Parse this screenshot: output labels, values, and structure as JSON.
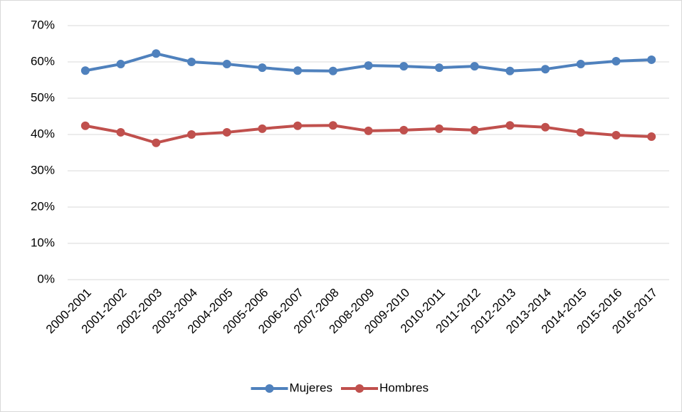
{
  "chart_data": {
    "type": "line",
    "categories": [
      "2000-2001",
      "2001-2002",
      "2002-2003",
      "2003-2004",
      "2004-2005",
      "2005-2006",
      "2006-2007",
      "2007-2008",
      "2008-2009",
      "2009-2010",
      "2010-2011",
      "2011-2012",
      "2012-2013",
      "2013-2014",
      "2014-2015",
      "2015-2016",
      "2016-2017"
    ],
    "series": [
      {
        "name": "Mujeres",
        "color": "#4f81bd",
        "values": [
          57.6,
          59.4,
          62.3,
          60.0,
          59.4,
          58.4,
          57.6,
          57.5,
          59.0,
          58.8,
          58.4,
          58.8,
          57.5,
          58.0,
          59.4,
          60.2,
          60.6
        ]
      },
      {
        "name": "Hombres",
        "color": "#c0504d",
        "values": [
          42.4,
          40.6,
          37.7,
          40.0,
          40.6,
          41.6,
          42.4,
          42.5,
          41.0,
          41.2,
          41.6,
          41.2,
          42.5,
          42.0,
          40.6,
          39.8,
          39.4
        ]
      }
    ],
    "ylim": [
      0,
      70
    ],
    "yticks": [
      {
        "value": 0,
        "label": "0%"
      },
      {
        "value": 10,
        "label": "10%"
      },
      {
        "value": 20,
        "label": "20%"
      },
      {
        "value": 30,
        "label": "30%"
      },
      {
        "value": 40,
        "label": "40%"
      },
      {
        "value": 50,
        "label": "50%"
      },
      {
        "value": 60,
        "label": "60%"
      },
      {
        "value": 70,
        "label": "70%"
      }
    ],
    "grid": true,
    "legend": "bottom"
  }
}
